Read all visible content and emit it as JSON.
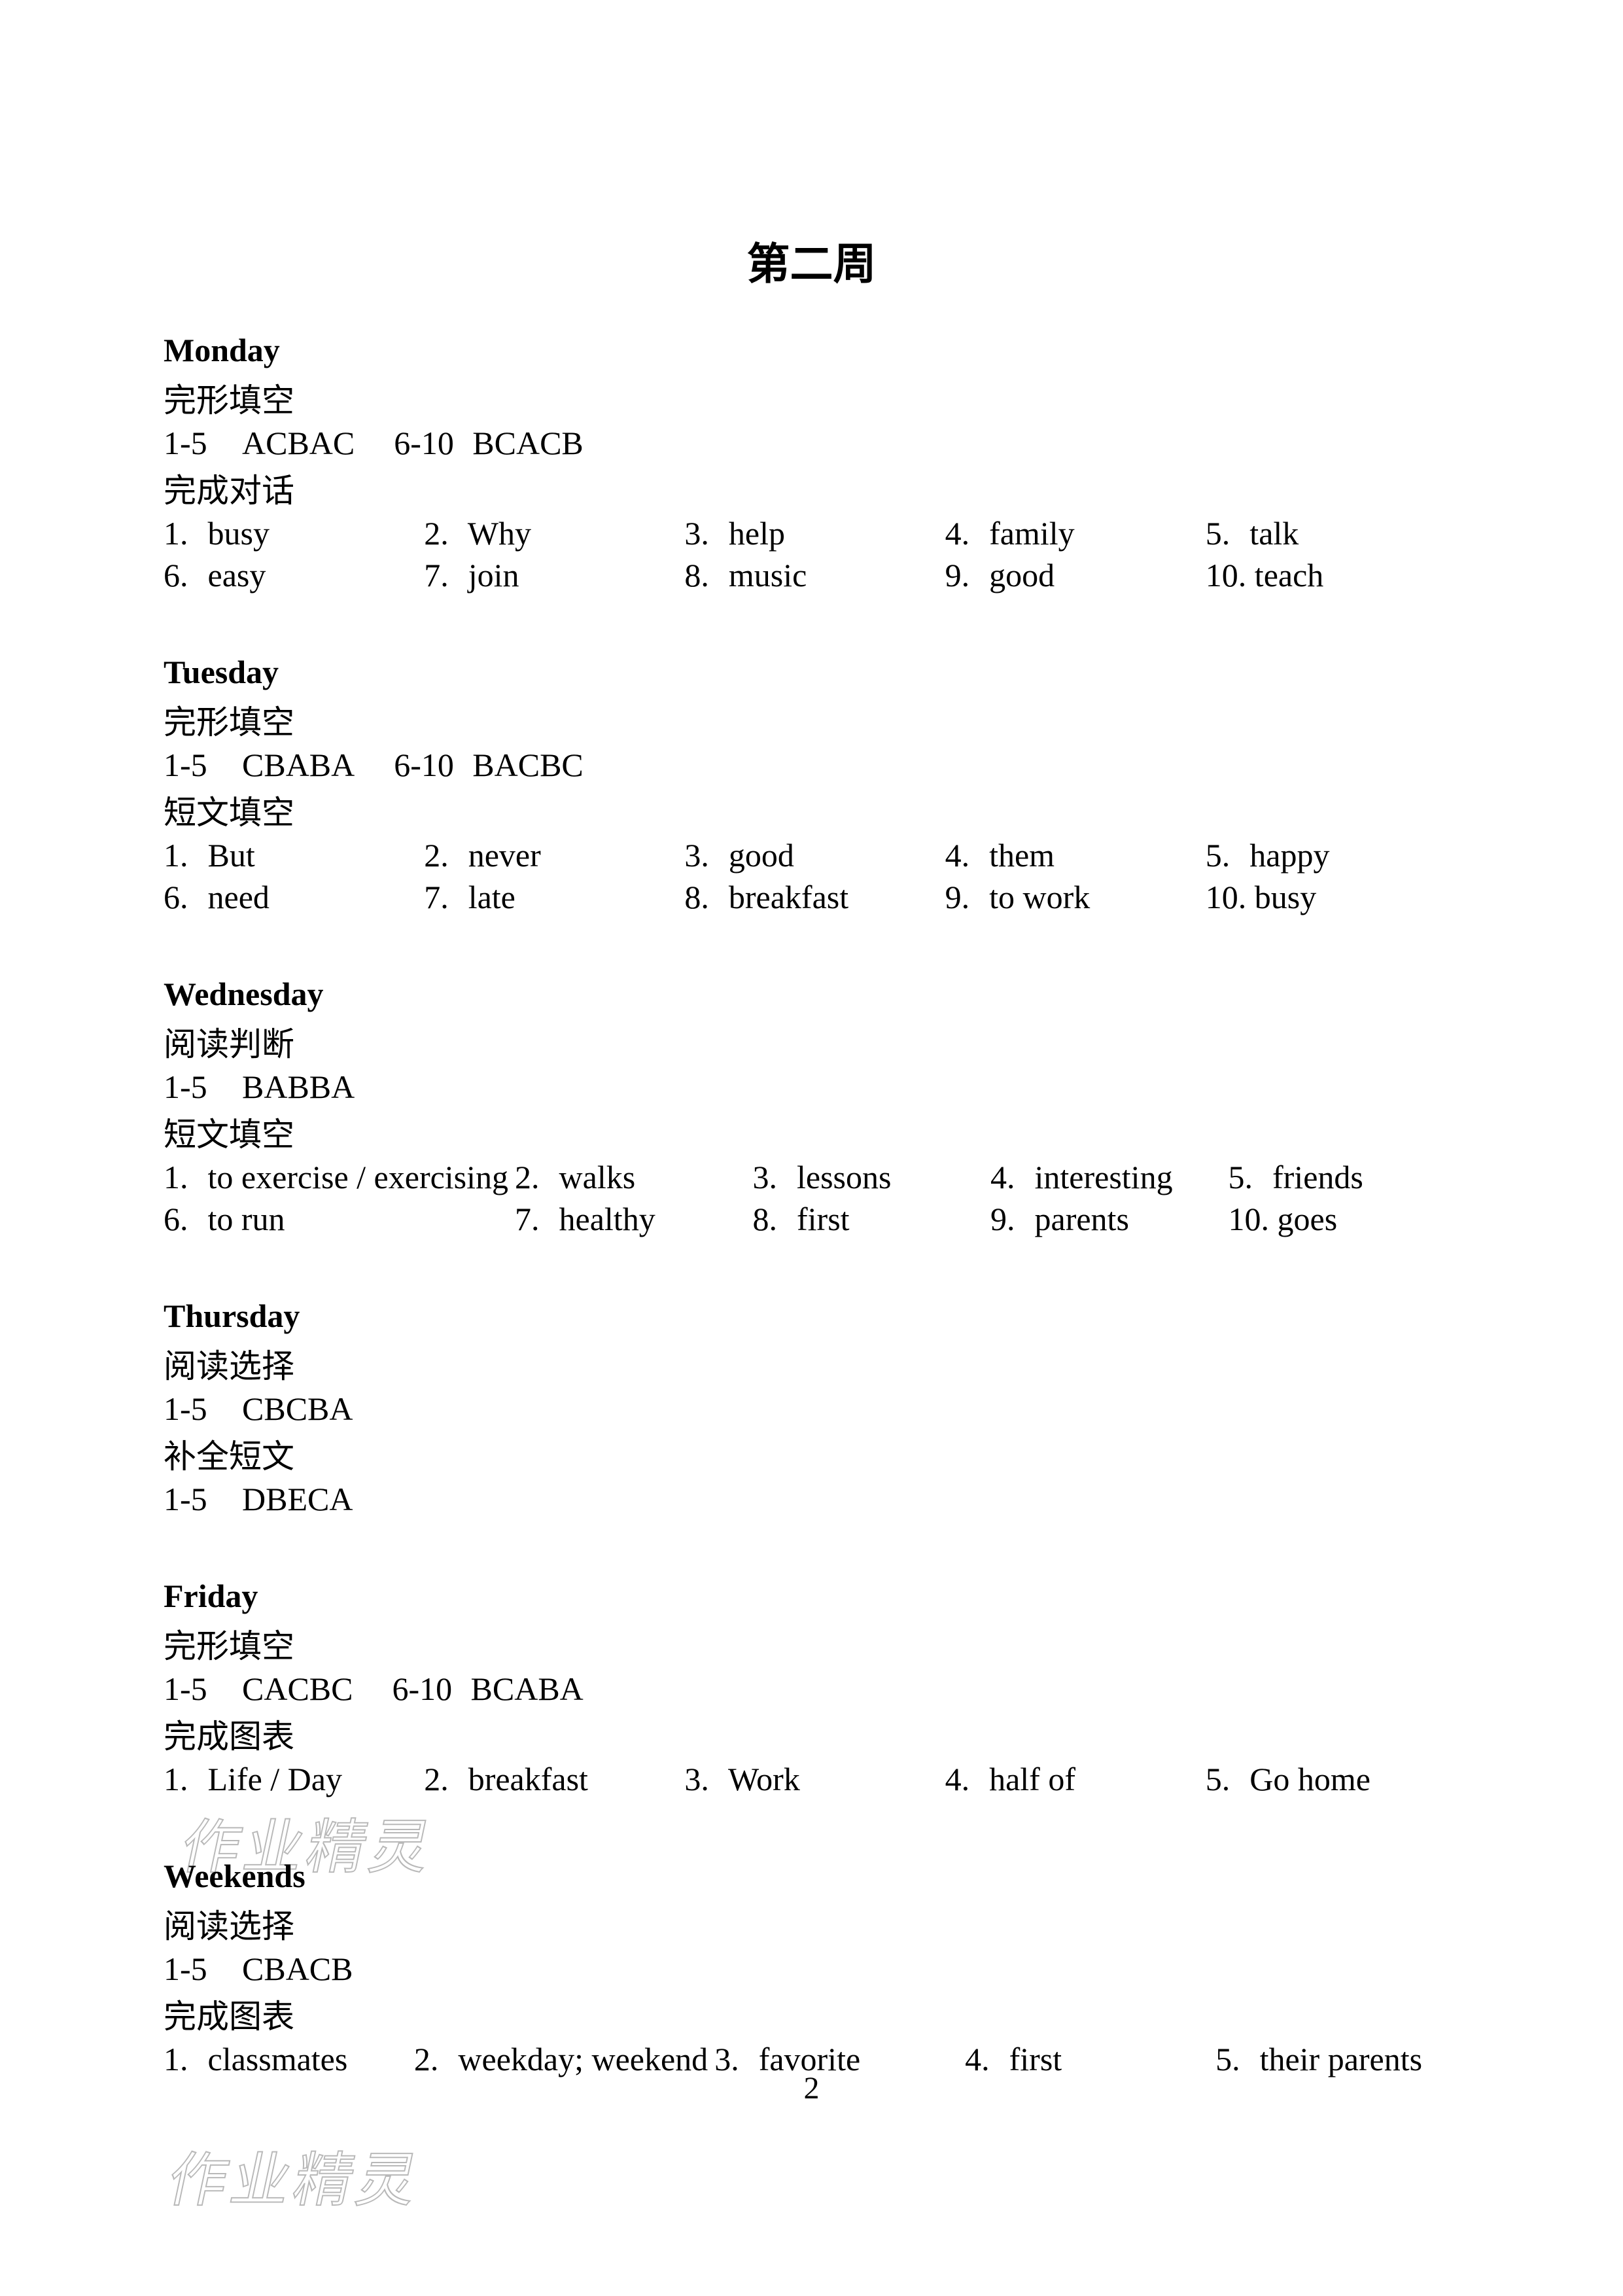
{
  "title": "第二周",
  "page_number": "2",
  "watermark": "作业精灵",
  "days": {
    "monday": {
      "heading": "Monday",
      "sections": [
        {
          "label": "完形填空",
          "type": "mc",
          "groups": [
            {
              "range": "1-5",
              "answers": "ACBAC"
            },
            {
              "range": "6-10",
              "answers": "BCACB"
            }
          ]
        },
        {
          "label": "完成对话",
          "type": "fill",
          "items": [
            "busy",
            "Why",
            "help",
            "family",
            "talk",
            "easy",
            "join",
            "music",
            "good",
            "teach"
          ]
        }
      ]
    },
    "tuesday": {
      "heading": "Tuesday",
      "sections": [
        {
          "label": "完形填空",
          "type": "mc",
          "groups": [
            {
              "range": "1-5",
              "answers": "CBABA"
            },
            {
              "range": "6-10",
              "answers": "BACBC"
            }
          ]
        },
        {
          "label": "短文填空",
          "type": "fill",
          "items": [
            "But",
            "never",
            "good",
            "them",
            "happy",
            "need",
            "late",
            "breakfast",
            "to work",
            "busy"
          ]
        }
      ]
    },
    "wednesday": {
      "heading": "Wednesday",
      "sections": [
        {
          "label": "阅读判断",
          "type": "mc",
          "groups": [
            {
              "range": "1-5",
              "answers": "BABBA"
            }
          ]
        },
        {
          "label": "短文填空",
          "type": "fill",
          "items": [
            "to exercise / exercising",
            "walks",
            "lessons",
            "interesting",
            "friends",
            "to run",
            "healthy",
            "first",
            "parents",
            "goes"
          ]
        }
      ]
    },
    "thursday": {
      "heading": "Thursday",
      "sections": [
        {
          "label": "阅读选择",
          "type": "mc",
          "groups": [
            {
              "range": "1-5",
              "answers": "CBCBA"
            }
          ]
        },
        {
          "label": "补全短文",
          "type": "mc",
          "groups": [
            {
              "range": "1-5",
              "answers": "DBECA"
            }
          ]
        }
      ]
    },
    "friday": {
      "heading": "Friday",
      "sections": [
        {
          "label": "完形填空",
          "type": "mc",
          "groups": [
            {
              "range": "1-5",
              "answers": "CACBC"
            },
            {
              "range": "6-10",
              "answers": "BCABA"
            }
          ]
        },
        {
          "label": "完成图表",
          "type": "fill",
          "items": [
            "Life / Day",
            "breakfast",
            "Work",
            "half of",
            "Go home"
          ]
        }
      ]
    },
    "weekends": {
      "heading": "Weekends",
      "sections": [
        {
          "label": "阅读选择",
          "type": "mc",
          "groups": [
            {
              "range": "1-5",
              "answers": "CBACB"
            }
          ]
        },
        {
          "label": "完成图表",
          "type": "fill",
          "items": [
            "classmates",
            "weekday; weekend",
            "favorite",
            "first",
            "their parents"
          ]
        }
      ]
    }
  },
  "day_order": [
    "monday",
    "tuesday",
    "wednesday",
    "thursday",
    "friday",
    "weekends"
  ]
}
